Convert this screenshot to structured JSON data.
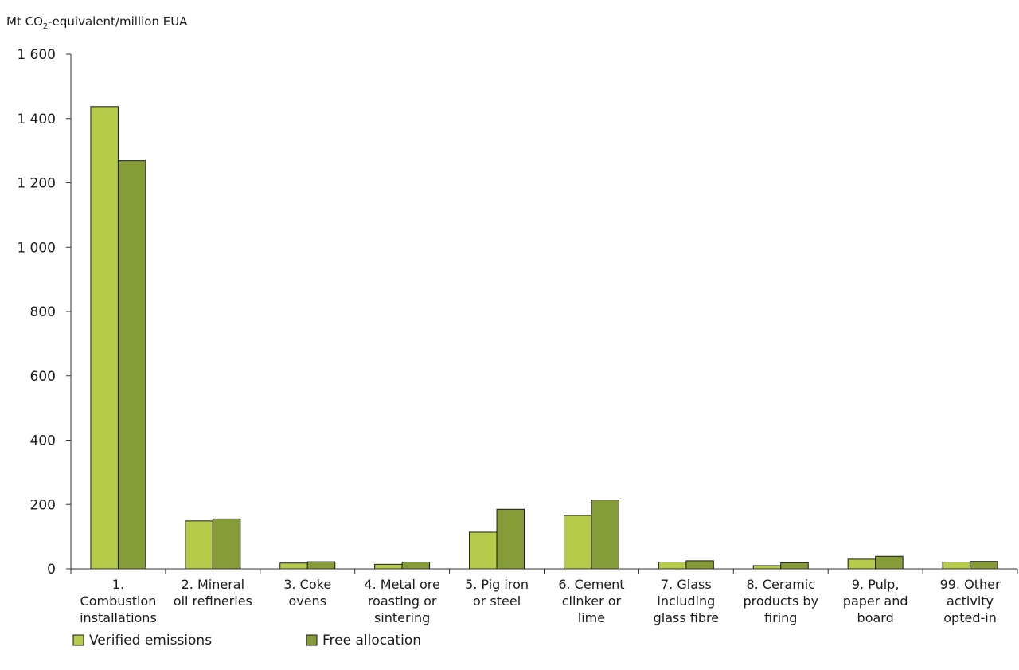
{
  "chart_data": {
    "type": "bar",
    "title": "",
    "ylabel_prefix": "Mt CO",
    "ylabel_sub": "2",
    "ylabel_suffix": "-equivalent/million EUA",
    "ylim": [
      0,
      1600
    ],
    "yticks": [
      0,
      200,
      400,
      600,
      800,
      1000,
      1200,
      1400,
      1600
    ],
    "ytick_labels": [
      "0",
      "200",
      "400",
      "600",
      "800",
      "1 000",
      "1 200",
      "1 400",
      "1 600"
    ],
    "grid": false,
    "legend_position": "bottom-left",
    "categories": [
      [
        "1.",
        "Combustion",
        "installations"
      ],
      [
        "2. Mineral",
        "oil refineries"
      ],
      [
        "3. Coke",
        "ovens"
      ],
      [
        "4. Metal ore",
        "roasting or",
        "sintering"
      ],
      [
        "5. Pig iron",
        "or steel"
      ],
      [
        "6. Cement",
        "clinker or",
        "lime"
      ],
      [
        "7. Glass",
        "including",
        "glass fibre"
      ],
      [
        "8. Ceramic",
        "products by",
        "firing"
      ],
      [
        "9. Pulp,",
        "paper and",
        "board"
      ],
      [
        "99. Other",
        "activity",
        "opted-in"
      ]
    ],
    "series": [
      {
        "name": "Verified emissions",
        "color": "#b5cb49",
        "values": [
          1437,
          149,
          18,
          14,
          114,
          166,
          21,
          10,
          30,
          21
        ]
      },
      {
        "name": "Free allocation",
        "color": "#869c38",
        "values": [
          1269,
          155,
          22,
          21,
          185,
          214,
          25,
          19,
          39,
          23
        ]
      }
    ]
  }
}
